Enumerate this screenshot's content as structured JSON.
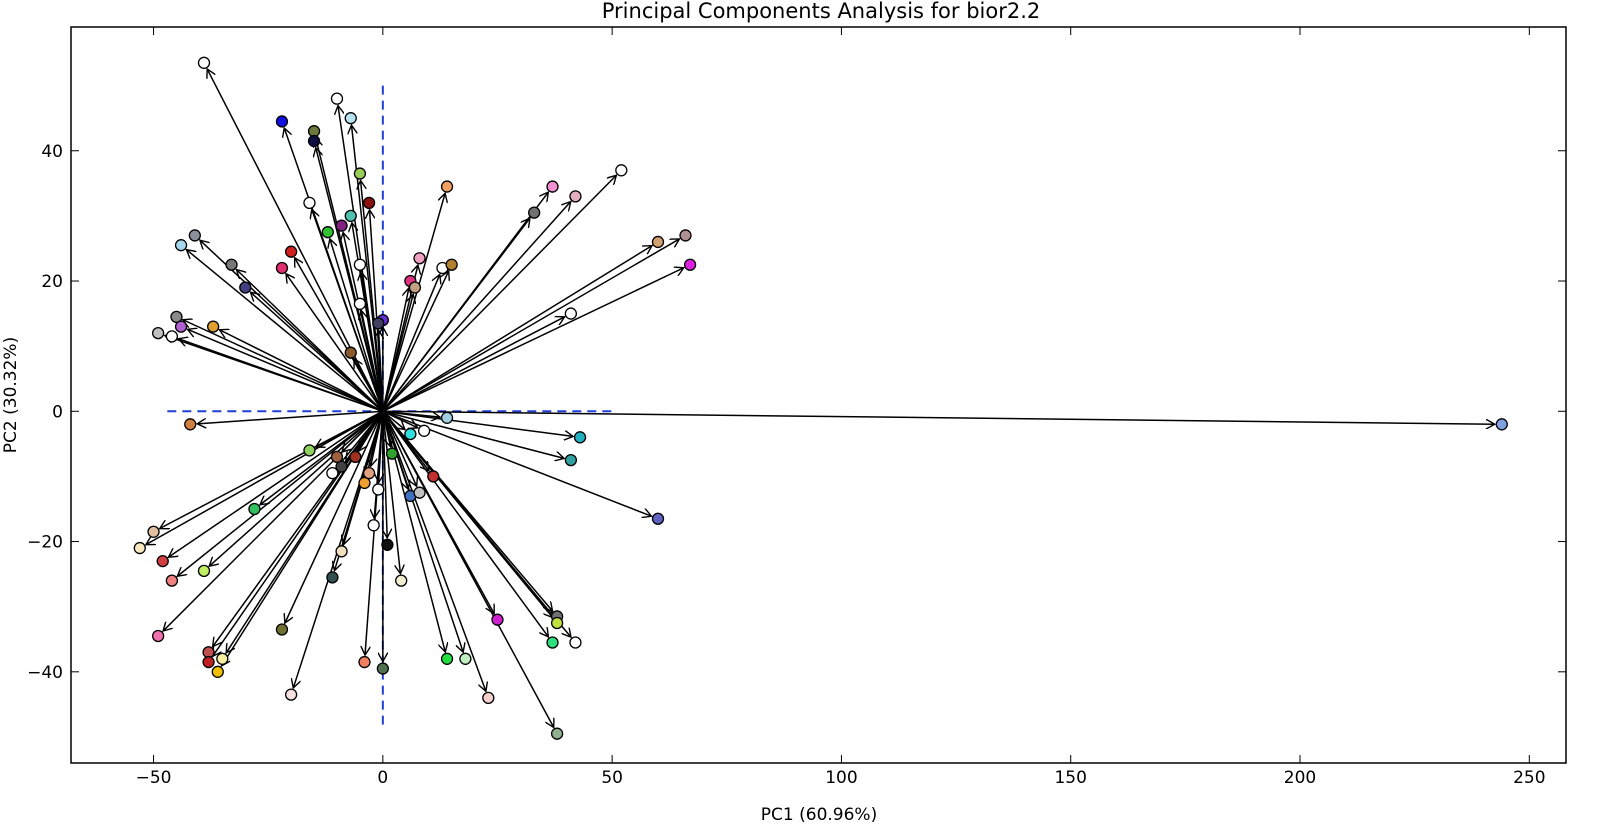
{
  "chart_data": {
    "type": "scatter",
    "title": "Principal Components Analysis for bior2.2",
    "xlabel": "PC1 (60.96%)",
    "ylabel": "PC2 (30.32%)",
    "xlim": [
      -68,
      258
    ],
    "ylim": [
      -54,
      59
    ],
    "xticks": [
      -50,
      0,
      50,
      100,
      150,
      200,
      250
    ],
    "yticks": [
      -40,
      -20,
      0,
      20,
      40
    ],
    "xtick_labels": [
      "−50",
      "0",
      "50",
      "100",
      "150",
      "200",
      "250"
    ],
    "ytick_labels": [
      "−40",
      "−20",
      "0",
      "20",
      "40"
    ],
    "grid": false,
    "legend": "none",
    "arrow_origin": [
      0,
      0
    ],
    "axis_guides": {
      "color": "#1f3fd6",
      "horizontal_x": [
        -47,
        50
      ],
      "vertical_y": [
        -49,
        50
      ]
    },
    "points": [
      {
        "x": -39,
        "y": 53.5,
        "color": "#ffffff"
      },
      {
        "x": -22,
        "y": 44.5,
        "color": "#1010e0"
      },
      {
        "x": -15,
        "y": 43,
        "color": "#6b7a3a"
      },
      {
        "x": -15,
        "y": 41.5,
        "color": "#101040"
      },
      {
        "x": -10,
        "y": 48,
        "color": "#ffffff"
      },
      {
        "x": -7,
        "y": 45,
        "color": "#b8e4f0"
      },
      {
        "x": -5,
        "y": 36.5,
        "color": "#9acd5a"
      },
      {
        "x": -3,
        "y": 32,
        "color": "#8b1010"
      },
      {
        "x": -16,
        "y": 32,
        "color": "#ffffff"
      },
      {
        "x": -7,
        "y": 30,
        "color": "#50c0b0"
      },
      {
        "x": -9,
        "y": 28.5,
        "color": "#802080"
      },
      {
        "x": -12,
        "y": 27.5,
        "color": "#30c030"
      },
      {
        "x": -5,
        "y": 22.5,
        "color": "#ffffff"
      },
      {
        "x": -20,
        "y": 24.5,
        "color": "#d02020"
      },
      {
        "x": -22,
        "y": 22,
        "color": "#e03070"
      },
      {
        "x": -41,
        "y": 27,
        "color": "#8a9099"
      },
      {
        "x": -44,
        "y": 25.5,
        "color": "#a8d8f0"
      },
      {
        "x": -33,
        "y": 22.5,
        "color": "#777777"
      },
      {
        "x": -30,
        "y": 19,
        "color": "#404080"
      },
      {
        "x": -5,
        "y": 16.5,
        "color": "#ffffff"
      },
      {
        "x": 14,
        "y": 34.5,
        "color": "#f0a060"
      },
      {
        "x": 33,
        "y": 30.5,
        "color": "#707070"
      },
      {
        "x": 37,
        "y": 34.5,
        "color": "#f090d0"
      },
      {
        "x": 42,
        "y": 33,
        "color": "#e0b0c0"
      },
      {
        "x": 52,
        "y": 37,
        "color": "#ffffff"
      },
      {
        "x": 60,
        "y": 26,
        "color": "#d0a070"
      },
      {
        "x": 66,
        "y": 27,
        "color": "#b09090"
      },
      {
        "x": 67,
        "y": 22.5,
        "color": "#e020e0"
      },
      {
        "x": 41,
        "y": 15,
        "color": "#ffffff"
      },
      {
        "x": 13,
        "y": 22,
        "color": "#ffffff"
      },
      {
        "x": 15,
        "y": 22.5,
        "color": "#b08030"
      },
      {
        "x": 8,
        "y": 23.5,
        "color": "#f0a0c0"
      },
      {
        "x": 6,
        "y": 20,
        "color": "#e03080"
      },
      {
        "x": 7,
        "y": 19,
        "color": "#c0a080"
      },
      {
        "x": 0,
        "y": 14,
        "color": "#6030d0"
      },
      {
        "x": -1,
        "y": 13.5,
        "color": "#404060"
      },
      {
        "x": -45,
        "y": 14.5,
        "color": "#8a8a8a"
      },
      {
        "x": -44,
        "y": 13,
        "color": "#b060d0"
      },
      {
        "x": -37,
        "y": 13,
        "color": "#e0a030"
      },
      {
        "x": -49,
        "y": 12,
        "color": "#c0c0c0"
      },
      {
        "x": -46,
        "y": 11.5,
        "color": "#ffffff"
      },
      {
        "x": -7,
        "y": 9,
        "color": "#8b5a2b"
      },
      {
        "x": -42,
        "y": -2,
        "color": "#d08040"
      },
      {
        "x": 14,
        "y": -1,
        "color": "#a0d0e0"
      },
      {
        "x": 6,
        "y": -3.5,
        "color": "#30e0e0"
      },
      {
        "x": 9,
        "y": -3,
        "color": "#ffffff"
      },
      {
        "x": 43,
        "y": -4,
        "color": "#20b0c0"
      },
      {
        "x": 41,
        "y": -7.5,
        "color": "#30a0a0"
      },
      {
        "x": 60,
        "y": -16.5,
        "color": "#6060c0"
      },
      {
        "x": 244,
        "y": -2,
        "color": "#80a0e0"
      },
      {
        "x": -16,
        "y": -6,
        "color": "#90d060"
      },
      {
        "x": -10,
        "y": -7,
        "color": "#a06040"
      },
      {
        "x": -6,
        "y": -7,
        "color": "#a03020"
      },
      {
        "x": -9,
        "y": -8.5,
        "color": "#404040"
      },
      {
        "x": -11,
        "y": -9.5,
        "color": "#ffffff"
      },
      {
        "x": -3,
        "y": -9.5,
        "color": "#e0a080"
      },
      {
        "x": 2,
        "y": -6.5,
        "color": "#30a030"
      },
      {
        "x": 11,
        "y": -10,
        "color": "#c03030"
      },
      {
        "x": -4,
        "y": -11,
        "color": "#f0a030"
      },
      {
        "x": -1,
        "y": -12,
        "color": "#ffffff"
      },
      {
        "x": 6,
        "y": -13,
        "color": "#4070c0"
      },
      {
        "x": 8,
        "y": -12.5,
        "color": "#c0c0c0"
      },
      {
        "x": -28,
        "y": -15,
        "color": "#30c060"
      },
      {
        "x": -50,
        "y": -18.5,
        "color": "#e0c0a0"
      },
      {
        "x": -53,
        "y": -21,
        "color": "#f8e8c0"
      },
      {
        "x": -48,
        "y": -23,
        "color": "#d04040"
      },
      {
        "x": -46,
        "y": -26,
        "color": "#f08080"
      },
      {
        "x": -39,
        "y": -24.5,
        "color": "#c0f060"
      },
      {
        "x": -2,
        "y": -17.5,
        "color": "#ffffff"
      },
      {
        "x": -9,
        "y": -21.5,
        "color": "#f0e0c0"
      },
      {
        "x": 1,
        "y": -20.5,
        "color": "#101010"
      },
      {
        "x": 4,
        "y": -26,
        "color": "#f0f0d0"
      },
      {
        "x": -11,
        "y": -25.5,
        "color": "#305050"
      },
      {
        "x": 25,
        "y": -32,
        "color": "#d020d0"
      },
      {
        "x": 38,
        "y": -31.5,
        "color": "#707070"
      },
      {
        "x": 38,
        "y": -32.5,
        "color": "#c0e040"
      },
      {
        "x": 37,
        "y": -35.5,
        "color": "#30e080"
      },
      {
        "x": 42,
        "y": -35.5,
        "color": "#ffffff"
      },
      {
        "x": -49,
        "y": -34.5,
        "color": "#f070b0"
      },
      {
        "x": -38,
        "y": -37,
        "color": "#c05050"
      },
      {
        "x": -38,
        "y": -38.5,
        "color": "#c02020"
      },
      {
        "x": -35,
        "y": -38,
        "color": "#f8f0a0"
      },
      {
        "x": -36,
        "y": -40,
        "color": "#f0c000"
      },
      {
        "x": -22,
        "y": -33.5,
        "color": "#707030"
      },
      {
        "x": -20,
        "y": -43.5,
        "color": "#f8e0e0"
      },
      {
        "x": -4,
        "y": -38.5,
        "color": "#f08060"
      },
      {
        "x": 0,
        "y": -39.5,
        "color": "#507050"
      },
      {
        "x": 14,
        "y": -38,
        "color": "#20e040"
      },
      {
        "x": 18,
        "y": -38,
        "color": "#c0f0c0"
      },
      {
        "x": 23,
        "y": -44,
        "color": "#f8d0d0"
      },
      {
        "x": 38,
        "y": -49.5,
        "color": "#90b090"
      }
    ]
  }
}
